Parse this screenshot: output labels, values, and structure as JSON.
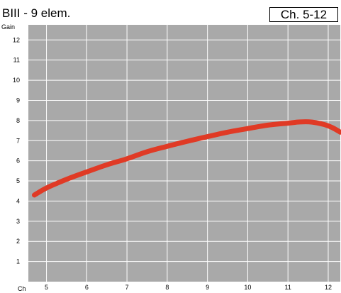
{
  "chart_data": {
    "type": "line",
    "title": "BIII - 9 elem.",
    "range_label": "Ch.   5-12",
    "xlabel": "Ch",
    "ylabel": "Gain",
    "xlim": [
      4.55,
      12.3
    ],
    "ylim": [
      0,
      12.75
    ],
    "x_ticks": [
      5,
      6,
      7,
      8,
      9,
      10,
      11,
      12
    ],
    "y_ticks": [
      1,
      2,
      3,
      4,
      5,
      6,
      7,
      8,
      9,
      10,
      11,
      12
    ],
    "grid": true,
    "plot_background": "#a9a9a9",
    "grid_color": "#ffffff",
    "line_color": "#e03a25",
    "series": [
      {
        "x": [
          4.7,
          5,
          5.5,
          6,
          6.5,
          7,
          7.5,
          8,
          8.5,
          9,
          9.5,
          10,
          10.5,
          11,
          11.3,
          11.6,
          11.9,
          12.1,
          12.3
        ],
        "y": [
          4.3,
          4.65,
          5.08,
          5.45,
          5.8,
          6.1,
          6.45,
          6.72,
          6.97,
          7.2,
          7.42,
          7.6,
          7.77,
          7.87,
          7.93,
          7.92,
          7.8,
          7.65,
          7.42
        ]
      }
    ]
  }
}
